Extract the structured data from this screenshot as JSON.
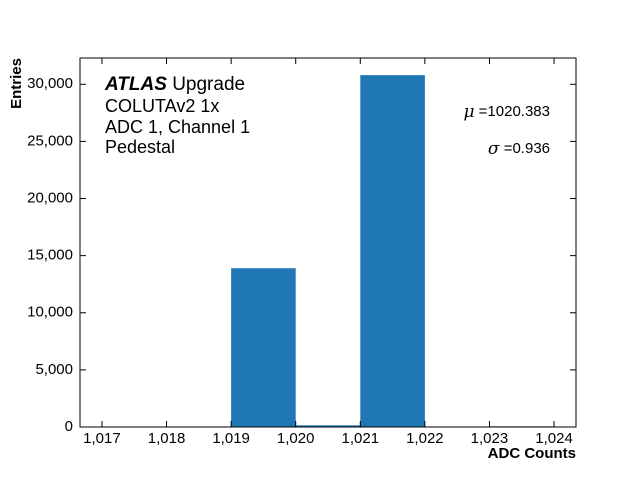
{
  "chart_data": {
    "type": "histogram",
    "xlabel": "ADC Counts",
    "ylabel": "Entries",
    "labels": {
      "experiment": "ATLAS",
      "experiment_tag": "Upgrade",
      "lines": [
        "COLUTAv2 1x",
        "ADC 1, Channel 1",
        "Pedestal"
      ]
    },
    "stats": [
      {
        "symbol": "μ",
        "text": "=1020.383"
      },
      {
        "symbol": "σ",
        "text": "=0.936"
      }
    ],
    "bins": [
      1017,
      1018,
      1019,
      1020,
      1021,
      1022,
      1023,
      1024
    ],
    "counts": [
      0,
      0,
      13900,
      150,
      30800,
      0,
      60
    ],
    "color": "#1f77b4",
    "xlim": [
      1016.66,
      1024.34
    ],
    "ylim": [
      0,
      32300
    ],
    "xticks": [
      {
        "value": 1017,
        "label": "1,017"
      },
      {
        "value": 1018,
        "label": "1,018"
      },
      {
        "value": 1019,
        "label": "1,019"
      },
      {
        "value": 1020,
        "label": "1,020"
      },
      {
        "value": 1021,
        "label": "1,021"
      },
      {
        "value": 1022,
        "label": "1,022"
      },
      {
        "value": 1023,
        "label": "1,023"
      },
      {
        "value": 1024,
        "label": "1,024"
      }
    ],
    "yticks": [
      0,
      {
        "value": 5000,
        "label": "5,000"
      },
      {
        "value": 10000,
        "label": "10,000"
      },
      {
        "value": 15000,
        "label": "15,000"
      },
      {
        "value": 20000,
        "label": "20,000"
      },
      {
        "value": 25000,
        "label": "25,000"
      },
      {
        "value": 30000,
        "label": "30,000"
      }
    ]
  }
}
